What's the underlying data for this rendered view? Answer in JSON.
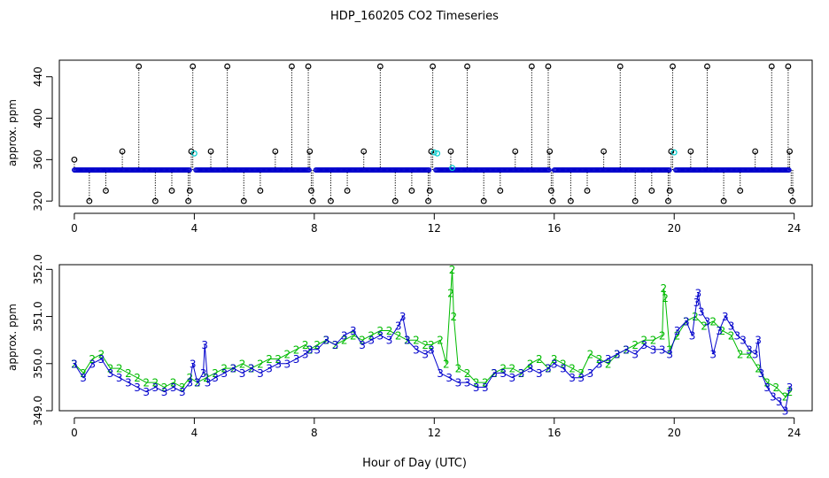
{
  "title": "HDP_160205  CO2 Timeseries",
  "xlabel": "Hour of Day (UTC)",
  "colors": {
    "black": "#000000",
    "blue": "#0000cc",
    "green": "#00bb00",
    "cyan": "#00cccc"
  },
  "chart_data": [
    {
      "type": "scatter",
      "name": "top-panel",
      "ylabel": "approx. ppm",
      "xlim": [
        -0.5,
        24.6
      ],
      "ylim": [
        315,
        456
      ],
      "xticks": [
        0,
        4,
        8,
        12,
        16,
        20,
        24
      ],
      "yticks": [
        320,
        360,
        400,
        440
      ],
      "baseline": {
        "color": "blue",
        "marker": "o",
        "value_ppm": 350,
        "segments": [
          [
            0.0,
            3.85
          ],
          [
            4.05,
            7.85
          ],
          [
            8.05,
            11.85
          ],
          [
            12.05,
            15.85
          ],
          [
            16.0,
            19.85
          ],
          [
            20.05,
            23.85
          ]
        ]
      },
      "spikes": [
        {
          "x": 0.0,
          "y": 360
        },
        {
          "x": 0.5,
          "y": 320
        },
        {
          "x": 1.05,
          "y": 330
        },
        {
          "x": 1.6,
          "y": 368
        },
        {
          "x": 2.15,
          "y": 450
        },
        {
          "x": 2.7,
          "y": 320
        },
        {
          "x": 3.25,
          "y": 330
        },
        {
          "x": 3.8,
          "y": 320
        },
        {
          "x": 3.85,
          "y": 330
        },
        {
          "x": 3.9,
          "y": 368
        },
        {
          "x": 3.95,
          "y": 450
        },
        {
          "x": 4.55,
          "y": 368
        },
        {
          "x": 5.1,
          "y": 450
        },
        {
          "x": 5.65,
          "y": 320
        },
        {
          "x": 6.2,
          "y": 330
        },
        {
          "x": 6.7,
          "y": 368
        },
        {
          "x": 7.25,
          "y": 450
        },
        {
          "x": 7.8,
          "y": 450
        },
        {
          "x": 7.85,
          "y": 368
        },
        {
          "x": 7.9,
          "y": 330
        },
        {
          "x": 7.95,
          "y": 320
        },
        {
          "x": 8.55,
          "y": 320
        },
        {
          "x": 9.1,
          "y": 330
        },
        {
          "x": 9.65,
          "y": 368
        },
        {
          "x": 10.2,
          "y": 450
        },
        {
          "x": 10.7,
          "y": 320
        },
        {
          "x": 11.25,
          "y": 330
        },
        {
          "x": 11.8,
          "y": 320
        },
        {
          "x": 11.85,
          "y": 330
        },
        {
          "x": 11.9,
          "y": 368
        },
        {
          "x": 11.95,
          "y": 450
        },
        {
          "x": 12.55,
          "y": 368
        },
        {
          "x": 13.1,
          "y": 450
        },
        {
          "x": 13.65,
          "y": 320
        },
        {
          "x": 14.2,
          "y": 330
        },
        {
          "x": 14.7,
          "y": 368
        },
        {
          "x": 15.25,
          "y": 450
        },
        {
          "x": 15.8,
          "y": 450
        },
        {
          "x": 15.85,
          "y": 368
        },
        {
          "x": 15.9,
          "y": 330
        },
        {
          "x": 15.95,
          "y": 320
        },
        {
          "x": 16.55,
          "y": 320
        },
        {
          "x": 17.1,
          "y": 330
        },
        {
          "x": 17.65,
          "y": 368
        },
        {
          "x": 18.2,
          "y": 450
        },
        {
          "x": 18.7,
          "y": 320
        },
        {
          "x": 19.25,
          "y": 330
        },
        {
          "x": 19.8,
          "y": 320
        },
        {
          "x": 19.85,
          "y": 330
        },
        {
          "x": 19.9,
          "y": 368
        },
        {
          "x": 19.95,
          "y": 450
        },
        {
          "x": 20.55,
          "y": 368
        },
        {
          "x": 21.1,
          "y": 450
        },
        {
          "x": 21.65,
          "y": 320
        },
        {
          "x": 22.2,
          "y": 330
        },
        {
          "x": 22.7,
          "y": 368
        },
        {
          "x": 23.25,
          "y": 450
        },
        {
          "x": 23.8,
          "y": 450
        },
        {
          "x": 23.85,
          "y": 368
        },
        {
          "x": 23.9,
          "y": 330
        },
        {
          "x": 23.95,
          "y": 320
        }
      ],
      "cyan_points": [
        {
          "x": 4.0,
          "y": 366
        },
        {
          "x": 12.0,
          "y": 367
        },
        {
          "x": 12.1,
          "y": 366
        },
        {
          "x": 12.6,
          "y": 352
        },
        {
          "x": 20.0,
          "y": 367
        }
      ]
    },
    {
      "type": "line",
      "name": "bottom-panel",
      "ylabel": "approx. ppm",
      "xlim": [
        -0.5,
        24.6
      ],
      "ylim": [
        349.0,
        352.1
      ],
      "xticks": [
        0,
        4,
        8,
        12,
        16,
        20,
        24
      ],
      "yticks": [
        349.0,
        350.0,
        351.0,
        352.0
      ],
      "ytick_labels": [
        "349.0",
        "350.0",
        "351.0",
        "352.0"
      ],
      "series": [
        {
          "name": "2",
          "color": "green",
          "marker": "2",
          "x": [
            0.0,
            0.3,
            0.6,
            0.9,
            1.2,
            1.5,
            1.8,
            2.1,
            2.4,
            2.7,
            3.0,
            3.3,
            3.6,
            3.85,
            4.1,
            4.4,
            4.7,
            5.0,
            5.3,
            5.6,
            5.9,
            6.2,
            6.5,
            6.8,
            7.1,
            7.4,
            7.7,
            7.85,
            8.1,
            8.4,
            8.7,
            9.0,
            9.3,
            9.6,
            9.9,
            10.2,
            10.5,
            10.8,
            11.1,
            11.4,
            11.7,
            11.9,
            12.2,
            12.4,
            12.55,
            12.6,
            12.65,
            12.8,
            13.1,
            13.4,
            13.7,
            14.0,
            14.3,
            14.6,
            14.9,
            15.2,
            15.5,
            15.8,
            16.0,
            16.3,
            16.6,
            16.9,
            17.2,
            17.5,
            17.8,
            18.1,
            18.4,
            18.7,
            19.0,
            19.3,
            19.6,
            19.65,
            19.7,
            19.85,
            20.1,
            20.4,
            20.7,
            21.0,
            21.3,
            21.6,
            21.9,
            22.2,
            22.5,
            22.8,
            23.1,
            23.4,
            23.7,
            23.85
          ],
          "y": [
            350.0,
            349.8,
            350.1,
            350.2,
            349.9,
            349.9,
            349.8,
            349.7,
            349.6,
            349.6,
            349.5,
            349.6,
            349.5,
            349.7,
            349.6,
            349.7,
            349.8,
            349.9,
            349.9,
            350.0,
            349.9,
            350.0,
            350.1,
            350.1,
            350.2,
            350.3,
            350.4,
            350.3,
            350.4,
            350.5,
            350.4,
            350.5,
            350.6,
            350.5,
            350.6,
            350.7,
            350.7,
            350.6,
            350.5,
            350.5,
            350.4,
            350.4,
            350.5,
            350.0,
            351.5,
            352.0,
            351.0,
            349.9,
            349.8,
            349.6,
            349.6,
            349.8,
            349.9,
            349.9,
            349.8,
            350.0,
            350.1,
            349.9,
            350.1,
            350.0,
            349.9,
            349.8,
            350.2,
            350.1,
            350.0,
            350.2,
            350.3,
            350.4,
            350.5,
            350.5,
            350.6,
            351.6,
            351.4,
            350.3,
            350.6,
            350.9,
            351.0,
            350.8,
            350.9,
            350.7,
            350.6,
            350.2,
            350.2,
            349.9,
            349.6,
            349.5,
            349.3,
            349.4
          ]
        },
        {
          "name": "3",
          "color": "blue",
          "marker": "3",
          "x": [
            0.0,
            0.3,
            0.6,
            0.9,
            1.2,
            1.5,
            1.8,
            2.1,
            2.4,
            2.7,
            3.0,
            3.3,
            3.6,
            3.85,
            3.95,
            4.1,
            4.3,
            4.35,
            4.45,
            4.7,
            5.0,
            5.3,
            5.6,
            5.9,
            6.2,
            6.5,
            6.8,
            7.1,
            7.4,
            7.7,
            7.85,
            8.1,
            8.4,
            8.7,
            9.0,
            9.3,
            9.6,
            9.9,
            10.2,
            10.5,
            10.8,
            10.95,
            11.1,
            11.4,
            11.7,
            11.9,
            12.2,
            12.5,
            12.8,
            13.1,
            13.4,
            13.7,
            14.0,
            14.3,
            14.6,
            14.9,
            15.2,
            15.5,
            15.8,
            16.0,
            16.3,
            16.6,
            16.9,
            17.2,
            17.5,
            17.8,
            18.1,
            18.4,
            18.7,
            19.0,
            19.3,
            19.6,
            19.85,
            20.1,
            20.4,
            20.6,
            20.75,
            20.8,
            20.9,
            21.1,
            21.3,
            21.5,
            21.7,
            21.9,
            22.1,
            22.3,
            22.5,
            22.7,
            22.8,
            22.9,
            23.1,
            23.3,
            23.5,
            23.7,
            23.85
          ],
          "y": [
            350.0,
            349.7,
            350.0,
            350.1,
            349.8,
            349.7,
            349.6,
            349.5,
            349.4,
            349.5,
            349.4,
            349.5,
            349.4,
            349.6,
            350.0,
            349.6,
            349.8,
            350.4,
            349.6,
            349.7,
            349.8,
            349.9,
            349.8,
            349.9,
            349.8,
            349.9,
            350.0,
            350.0,
            350.1,
            350.2,
            350.3,
            350.3,
            350.5,
            350.4,
            350.6,
            350.7,
            350.4,
            350.5,
            350.6,
            350.5,
            350.8,
            351.0,
            350.5,
            350.3,
            350.2,
            350.3,
            349.8,
            349.7,
            349.6,
            349.6,
            349.5,
            349.5,
            349.8,
            349.8,
            349.7,
            349.8,
            349.9,
            349.8,
            349.9,
            350.0,
            349.9,
            349.7,
            349.7,
            349.8,
            350.0,
            350.1,
            350.2,
            350.3,
            350.2,
            350.4,
            350.3,
            350.3,
            350.2,
            350.7,
            350.9,
            350.6,
            351.3,
            351.5,
            351.1,
            350.9,
            350.2,
            350.7,
            351.0,
            350.8,
            350.6,
            350.5,
            350.3,
            350.2,
            350.5,
            349.8,
            349.5,
            349.3,
            349.2,
            349.0,
            349.5
          ]
        }
      ]
    }
  ]
}
